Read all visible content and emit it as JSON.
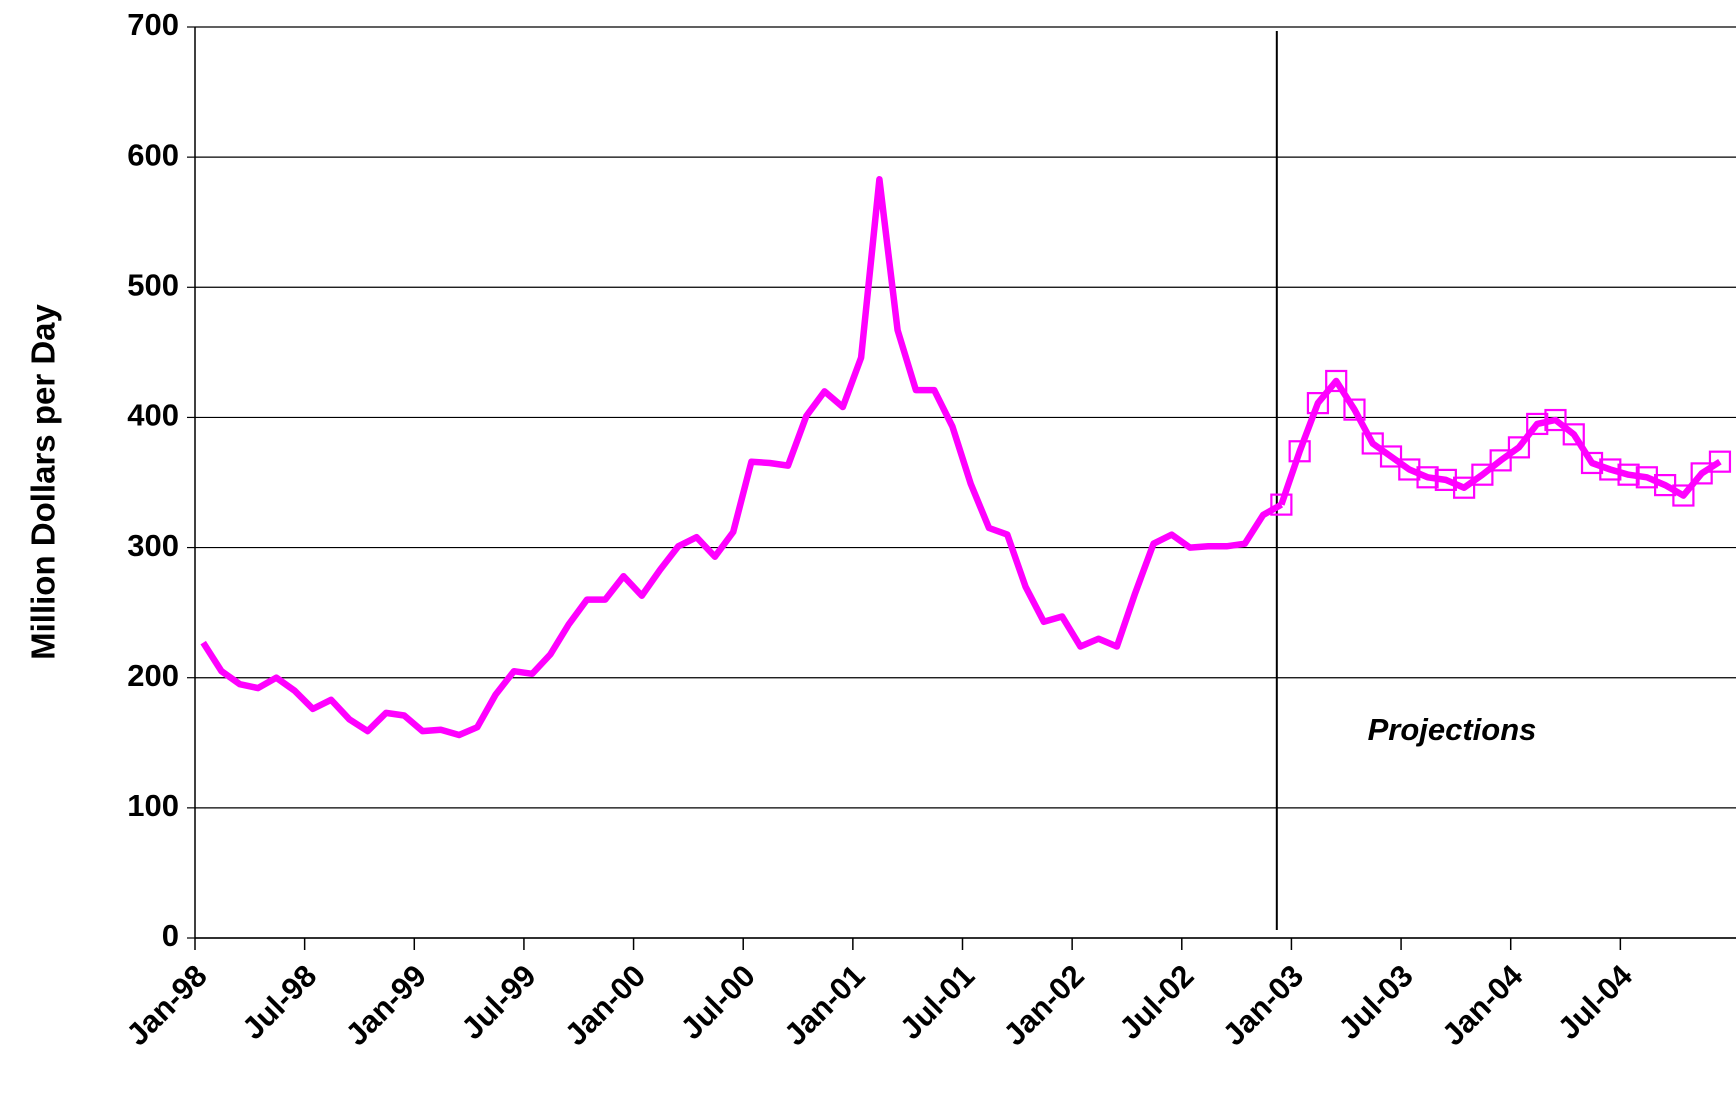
{
  "chart_data": {
    "type": "line",
    "y_label": "Million Dollars per Day",
    "annotation": "Projections",
    "categories": [
      "Jan-98",
      null,
      null,
      null,
      null,
      null,
      "Jul-98",
      null,
      null,
      null,
      null,
      null,
      "Jan-99",
      null,
      null,
      null,
      null,
      null,
      "Jul-99",
      null,
      null,
      null,
      null,
      null,
      "Jan-00",
      null,
      null,
      null,
      null,
      null,
      "Jul-00",
      null,
      null,
      null,
      null,
      null,
      "Jan-01",
      null,
      null,
      null,
      null,
      null,
      "Jul-01",
      null,
      null,
      null,
      null,
      null,
      "Jan-02",
      null,
      null,
      null,
      null,
      null,
      "Jul-02",
      null,
      null,
      null,
      null,
      null,
      "Jan-03",
      null,
      null,
      null,
      null,
      null,
      "Jul-03",
      null,
      null,
      null,
      null,
      null,
      "Jan-04",
      null,
      null,
      null,
      null,
      null,
      "Jul-04",
      null,
      null,
      null,
      null,
      null
    ],
    "series": [
      {
        "color": "#ff00ff",
        "marker": "none",
        "values": [
          227,
          205,
          195,
          192,
          200,
          190,
          176,
          183,
          168,
          159,
          173,
          171,
          159,
          160,
          156,
          162,
          187,
          205,
          203,
          218,
          241,
          260,
          260,
          278,
          263,
          283,
          301,
          308,
          293,
          312,
          366,
          365,
          363,
          401,
          420,
          408,
          446,
          583,
          467,
          421,
          421,
          393,
          349,
          315,
          310,
          270,
          243,
          247,
          224,
          230,
          224,
          265,
          303,
          310,
          300,
          301,
          301,
          303,
          325,
          333,
          null,
          null,
          null,
          null,
          null,
          null,
          null,
          null,
          null,
          null,
          null,
          null,
          null,
          null,
          null,
          null,
          null,
          null,
          null,
          null,
          null,
          null,
          null,
          null
        ]
      },
      {
        "color": "#ff00ff",
        "marker": "square",
        "values": [
          null,
          null,
          null,
          null,
          null,
          null,
          null,
          null,
          null,
          null,
          null,
          null,
          null,
          null,
          null,
          null,
          null,
          null,
          null,
          null,
          null,
          null,
          null,
          null,
          null,
          null,
          null,
          null,
          null,
          null,
          null,
          null,
          null,
          null,
          null,
          null,
          null,
          null,
          null,
          null,
          null,
          null,
          null,
          null,
          null,
          null,
          null,
          null,
          null,
          null,
          null,
          null,
          null,
          null,
          null,
          null,
          null,
          null,
          null,
          333,
          374,
          411,
          428,
          406,
          380,
          370,
          360,
          354,
          352,
          346,
          356,
          367,
          377,
          395,
          398,
          387,
          365,
          360,
          356,
          354,
          348,
          340,
          357,
          366
        ]
      }
    ],
    "ylim": [
      0,
      700
    ],
    "yticks": [
      0,
      100,
      200,
      300,
      400,
      500,
      600,
      700
    ],
    "grid": true
  }
}
